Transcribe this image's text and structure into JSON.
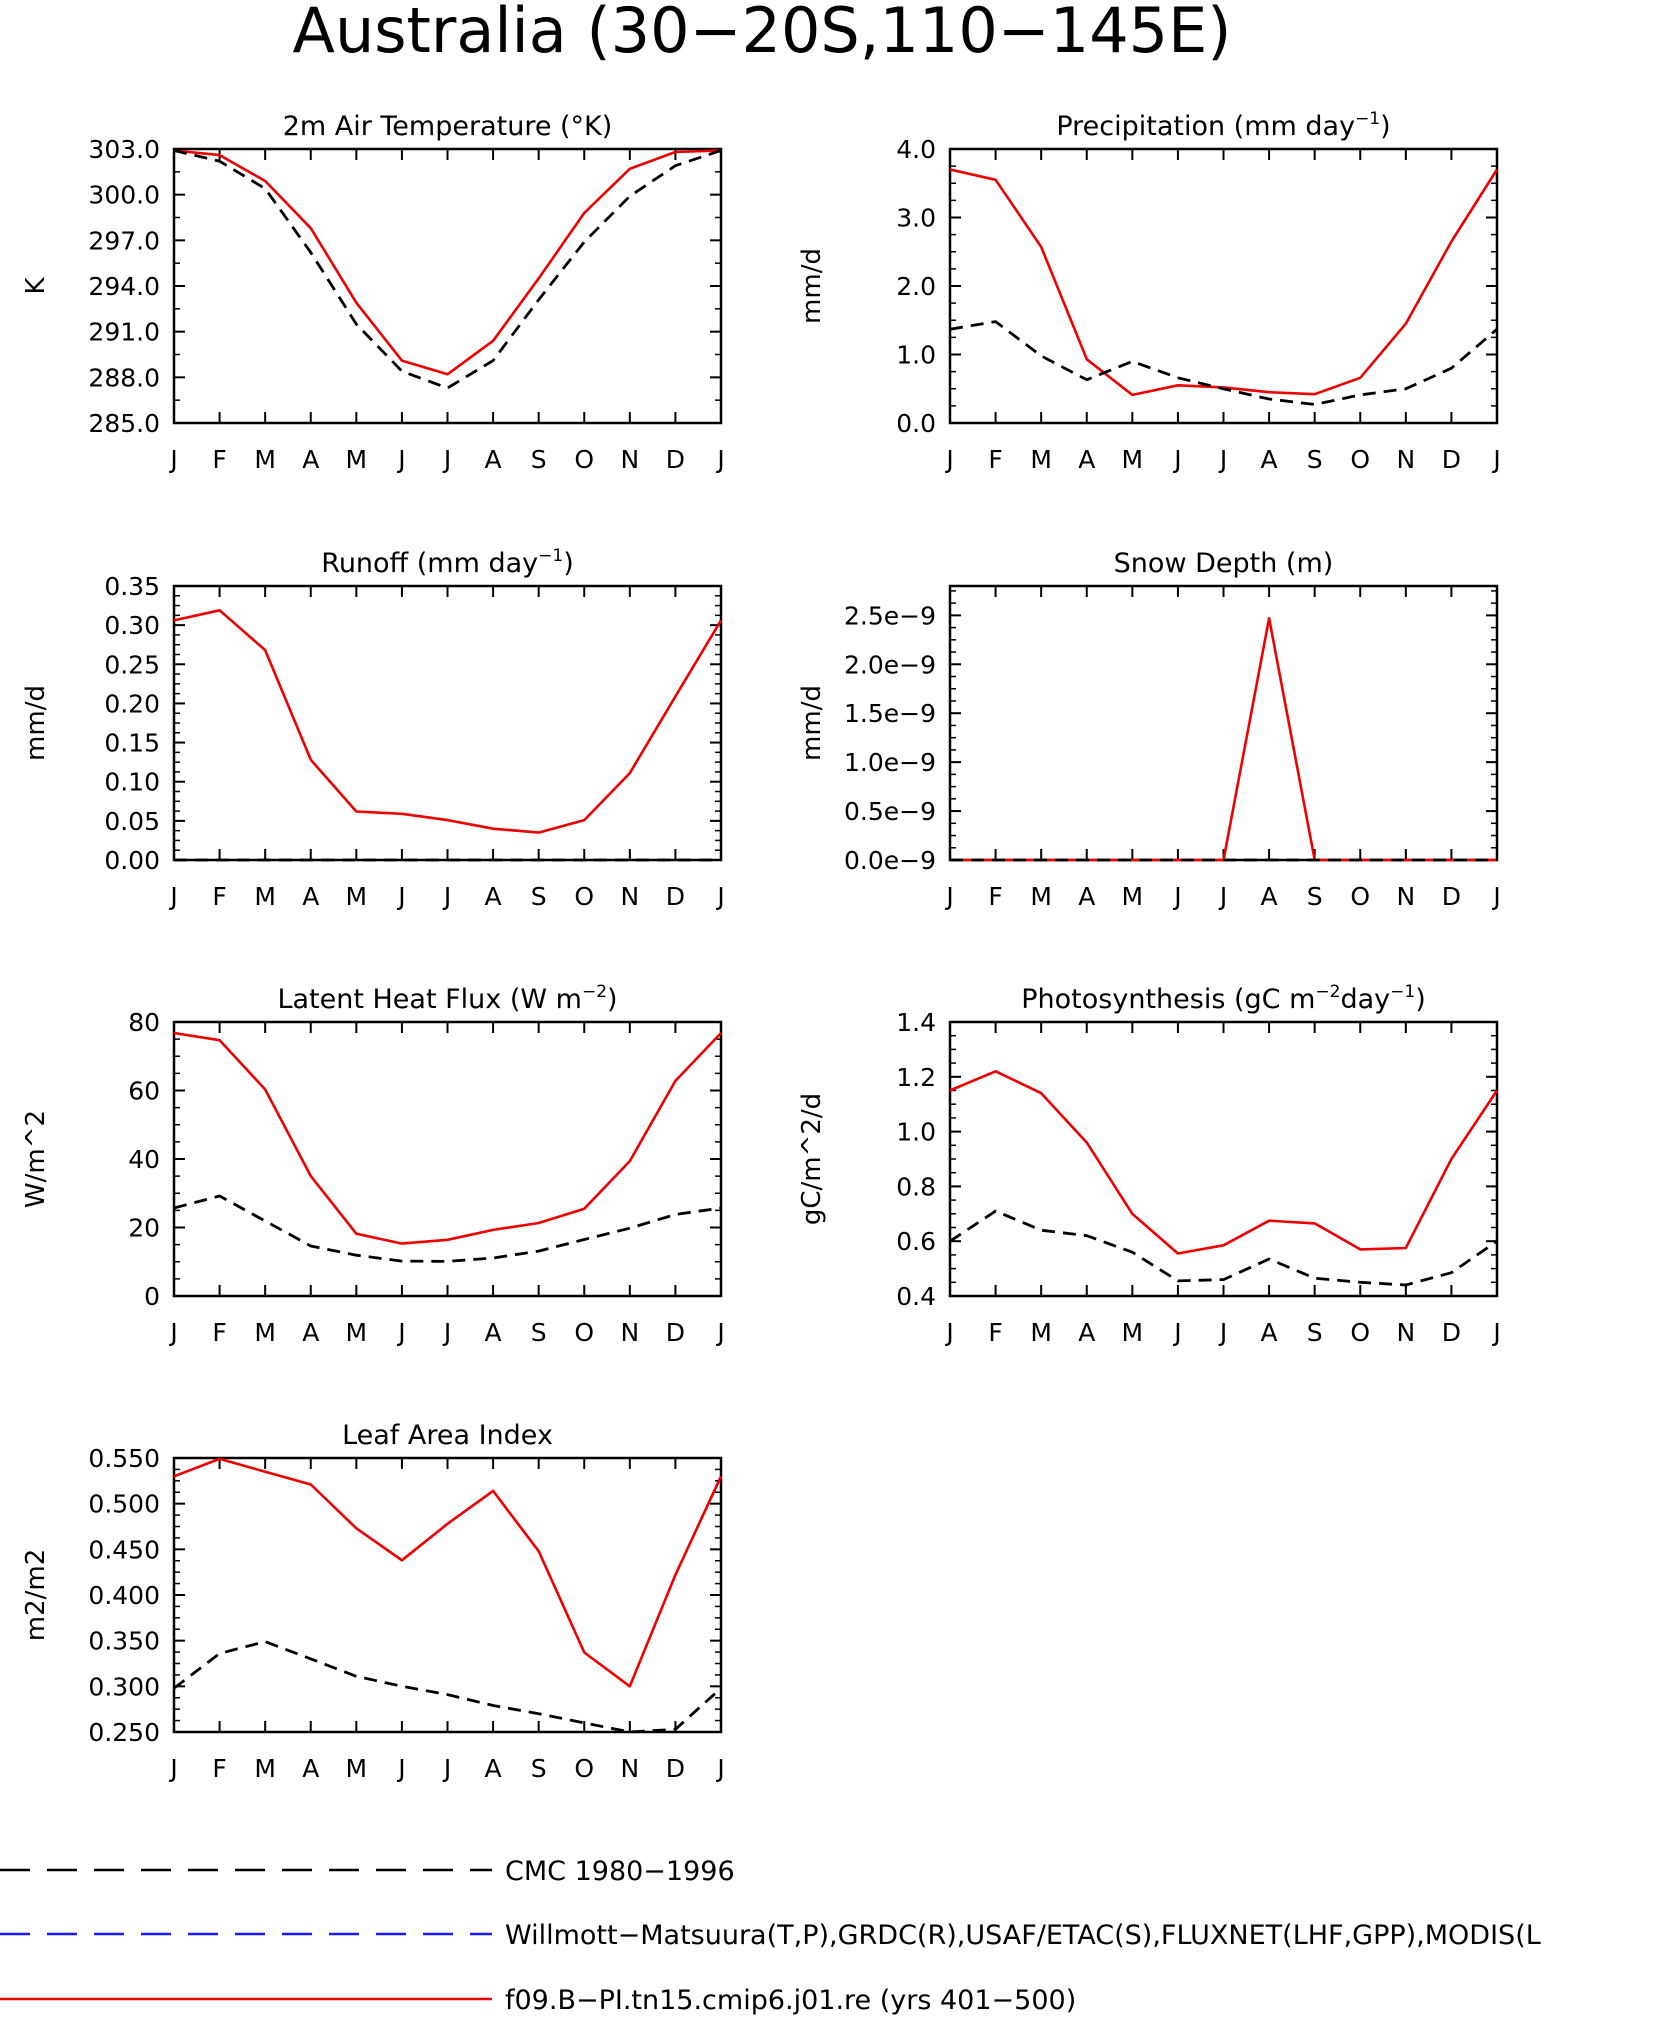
{
  "title": "Australia (30−20S,110−145E)",
  "colors": {
    "model": "#ee0000",
    "cmc": "#000000",
    "obs": "#1a1aff",
    "axis": "#000000"
  },
  "legend": [
    {
      "label": "CMC 1980−1996",
      "style": "dashed",
      "color": "#000000"
    },
    {
      "label": "Willmott−Matsuura(T,P),GRDC(R),USAF/ETAC(S),FLUXNET(LHF,GPP),MODIS(L",
      "style": "dashed",
      "color": "#1a1aff"
    },
    {
      "label": "f09.B−PI.tn15.cmip6.j01.re (yrs 401−500)",
      "style": "solid",
      "color": "#ee0000"
    }
  ],
  "chart_data": [
    {
      "type": "line",
      "title": "2m Air Temperature (°K)",
      "ylabel": "K",
      "x": [
        "J",
        "F",
        "M",
        "A",
        "M",
        "J",
        "J",
        "A",
        "S",
        "O",
        "N",
        "D",
        "J"
      ],
      "ylim": [
        285,
        303
      ],
      "yticks": [
        "285.0",
        "288.0",
        "291.0",
        "294.0",
        "297.0",
        "300.0",
        "303.0"
      ],
      "minor": 2,
      "series": [
        {
          "name": "f09.B−PI.tn15.cmip6.j01.re (yrs 401−500)",
          "style": "model",
          "values": [
            302.9,
            302.6,
            300.9,
            297.8,
            292.9,
            289.1,
            288.2,
            290.4,
            294.5,
            298.8,
            301.7,
            302.8,
            302.9
          ]
        },
        {
          "name": "CMC 1980−1996",
          "style": "cmc",
          "values": [
            302.9,
            302.2,
            300.4,
            296.2,
            291.5,
            288.4,
            287.3,
            289.1,
            293.1,
            296.9,
            299.9,
            301.9,
            302.9
          ]
        }
      ]
    },
    {
      "type": "line",
      "title": "Precipitation (mm day",
      "title_sup": "−1",
      "title_end": ")",
      "ylabel": "mm/d",
      "x": [
        "J",
        "F",
        "M",
        "A",
        "M",
        "J",
        "J",
        "A",
        "S",
        "O",
        "N",
        "D",
        "J"
      ],
      "ylim": [
        0,
        4
      ],
      "yticks": [
        "0.0",
        "1.0",
        "2.0",
        "3.0",
        "4.0"
      ],
      "minor": 4,
      "series": [
        {
          "name": "f09.B−PI.tn15.cmip6.j01.re (yrs 401−500)",
          "style": "model",
          "values": [
            3.7,
            3.55,
            2.57,
            0.93,
            0.41,
            0.55,
            0.52,
            0.45,
            0.42,
            0.66,
            1.45,
            2.65,
            3.7
          ]
        },
        {
          "name": "CMC 1980−1996",
          "style": "cmc",
          "values": [
            1.37,
            1.48,
            0.98,
            0.63,
            0.9,
            0.66,
            0.5,
            0.35,
            0.27,
            0.41,
            0.5,
            0.8,
            1.37
          ]
        }
      ]
    },
    {
      "type": "line",
      "title": "Runoff (mm day",
      "title_sup": "−1",
      "title_end": ")",
      "ylabel": "mm/d",
      "x": [
        "J",
        "F",
        "M",
        "A",
        "M",
        "J",
        "J",
        "A",
        "S",
        "O",
        "N",
        "D",
        "J"
      ],
      "ylim": [
        0,
        0.35
      ],
      "yticks": [
        "0.00",
        "0.05",
        "0.10",
        "0.15",
        "0.20",
        "0.25",
        "0.30",
        "0.35"
      ],
      "minor": 4,
      "series": [
        {
          "name": "f09.B−PI.tn15.cmip6.j01.re (yrs 401−500)",
          "style": "model",
          "values": [
            0.306,
            0.319,
            0.268,
            0.128,
            0.062,
            0.059,
            0.051,
            0.04,
            0.035,
            0.051,
            0.111,
            0.209,
            0.306
          ]
        },
        {
          "name": "CMC 1980−1996",
          "style": "cmc",
          "values": [
            0,
            0,
            0,
            0,
            0,
            0,
            0,
            0,
            0,
            0,
            0,
            0,
            0
          ]
        }
      ]
    },
    {
      "type": "line",
      "title": "Snow Depth (m)",
      "ylabel": "mm/d",
      "x": [
        "J",
        "F",
        "M",
        "A",
        "M",
        "J",
        "J",
        "A",
        "S",
        "O",
        "N",
        "D",
        "J"
      ],
      "ylim": [
        0,
        2.8
      ],
      "yunit": "e−9",
      "yticks": [
        "0.0e−9",
        "0.5e−9",
        "1.0e−9",
        "1.5e−9",
        "2.0e−9",
        "2.5e−9"
      ],
      "ytick_values": [
        0,
        0.5,
        1.0,
        1.5,
        2.0,
        2.5
      ],
      "minor": 4,
      "series": [
        {
          "name": "f09.B−PI.tn15.cmip6.j01.re (yrs 401−500)",
          "style": "model",
          "values": [
            0,
            0,
            0,
            0,
            0,
            0,
            0,
            2.47,
            0,
            0,
            0,
            0,
            0
          ]
        },
        {
          "name": "CMC 1980−1996",
          "style": "cmc",
          "values": [
            0,
            0,
            0,
            0,
            0,
            0,
            0,
            0,
            0,
            0,
            0,
            0,
            0
          ]
        }
      ]
    },
    {
      "type": "line",
      "title": "Latent Heat Flux (W m",
      "title_sup": "−2",
      "title_end": ")",
      "ylabel": "W/m^2",
      "x": [
        "J",
        "F",
        "M",
        "A",
        "M",
        "J",
        "J",
        "A",
        "S",
        "O",
        "N",
        "D",
        "J"
      ],
      "ylim": [
        0,
        80
      ],
      "yticks": [
        "0",
        "20",
        "40",
        "60",
        "80"
      ],
      "minor": 4,
      "series": [
        {
          "name": "f09.B−PI.tn15.cmip6.j01.re (yrs 401−500)",
          "style": "model",
          "values": [
            76.8,
            74.7,
            60.3,
            35.0,
            18.2,
            15.3,
            16.4,
            19.3,
            21.3,
            25.5,
            39.4,
            62.8,
            76.8
          ]
        },
        {
          "name": "CMC 1980−1996",
          "style": "cmc",
          "values": [
            25.7,
            29.2,
            21.9,
            14.6,
            11.9,
            10.2,
            10.1,
            11.1,
            13.1,
            16.5,
            19.8,
            23.8,
            25.7
          ]
        }
      ]
    },
    {
      "type": "line",
      "title": "Photosynthesis (gC m",
      "title_sup": "−2",
      "title_mid": "day",
      "title_sup2": "−1",
      "title_end": ")",
      "ylabel": "gC/m^2/d",
      "x": [
        "J",
        "F",
        "M",
        "A",
        "M",
        "J",
        "J",
        "A",
        "S",
        "O",
        "N",
        "D",
        "J"
      ],
      "ylim": [
        0.4,
        1.4
      ],
      "yticks": [
        "0.4",
        "0.6",
        "0.8",
        "1.0",
        "1.2",
        "1.4"
      ],
      "minor": 4,
      "series": [
        {
          "name": "f09.B−PI.tn15.cmip6.j01.re (yrs 401−500)",
          "style": "model",
          "values": [
            1.15,
            1.22,
            1.14,
            0.96,
            0.7,
            0.555,
            0.585,
            0.675,
            0.665,
            0.57,
            0.575,
            0.9,
            1.15
          ]
        },
        {
          "name": "CMC 1980−1996",
          "style": "cmc",
          "values": [
            0.6,
            0.71,
            0.64,
            0.62,
            0.56,
            0.455,
            0.46,
            0.535,
            0.465,
            0.45,
            0.44,
            0.485,
            0.6
          ]
        }
      ]
    },
    {
      "type": "line",
      "title": "Leaf Area Index",
      "ylabel": "m2/m2",
      "x": [
        "J",
        "F",
        "M",
        "A",
        "M",
        "J",
        "J",
        "A",
        "S",
        "O",
        "N",
        "D",
        "J"
      ],
      "ylim": [
        0.25,
        0.55
      ],
      "yticks": [
        "0.250",
        "0.300",
        "0.350",
        "0.400",
        "0.450",
        "0.500",
        "0.550"
      ],
      "minor": 4,
      "series": [
        {
          "name": "f09.B−PI.tn15.cmip6.j01.re (yrs 401−500)",
          "style": "model",
          "values": [
            0.53,
            0.549,
            0.535,
            0.521,
            0.473,
            0.438,
            0.478,
            0.514,
            0.448,
            0.337,
            0.3,
            0.422,
            0.53
          ]
        },
        {
          "name": "CMC 1980−1996",
          "style": "cmc",
          "values": [
            0.298,
            0.336,
            0.349,
            0.33,
            0.311,
            0.3,
            0.291,
            0.279,
            0.27,
            0.26,
            0.25,
            0.253,
            0.298
          ]
        }
      ]
    }
  ]
}
